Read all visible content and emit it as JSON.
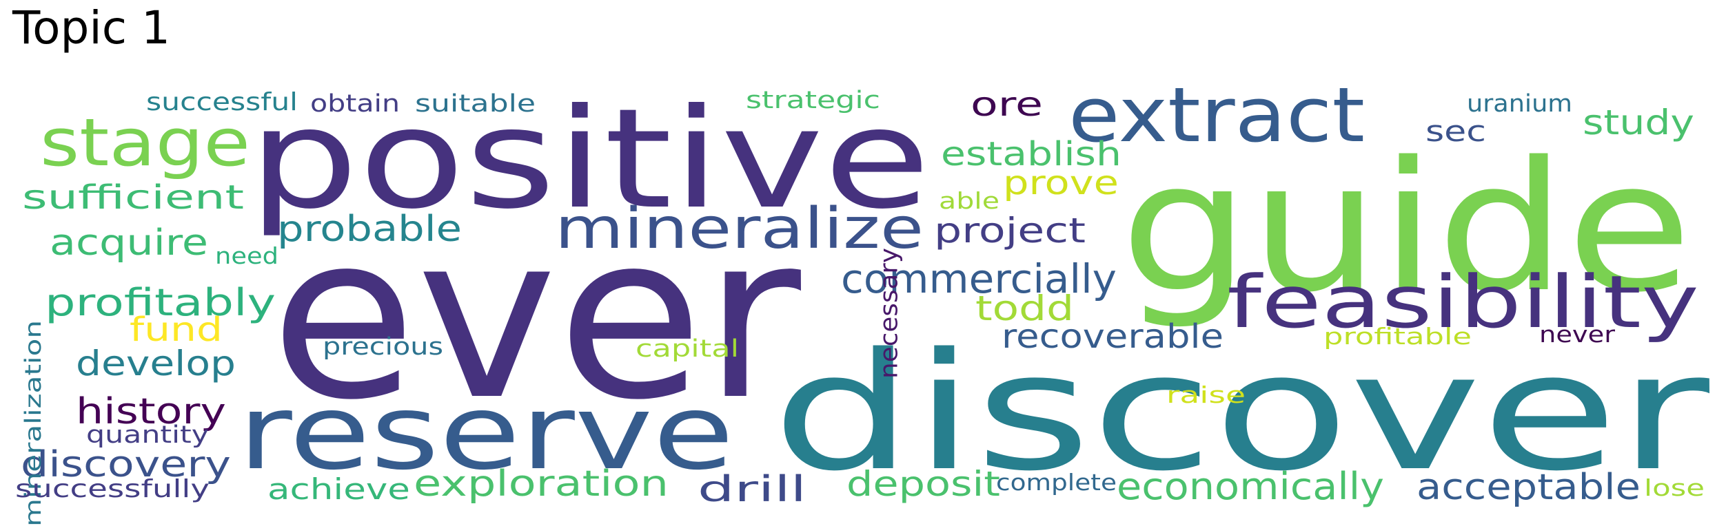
{
  "title": "Topic 1",
  "words": [
    {
      "text": "ever",
      "color": "#46327e"
    },
    {
      "text": "discover",
      "color": "#277f8e"
    },
    {
      "text": "guide",
      "color": "#7ad151"
    },
    {
      "text": "positive",
      "color": "#46327e"
    },
    {
      "text": "reserve",
      "color": "#365c8d"
    },
    {
      "text": "extract",
      "color": "#365c8d"
    },
    {
      "text": "feasibility",
      "color": "#46327e"
    },
    {
      "text": "mineralize",
      "color": "#3b528b"
    },
    {
      "text": "stage",
      "color": "#7ad151"
    },
    {
      "text": "commercially",
      "color": "#365c8d"
    },
    {
      "text": "economically",
      "color": "#4ac16d"
    },
    {
      "text": "acceptable",
      "color": "#365c8d"
    },
    {
      "text": "exploration",
      "color": "#4ac16d"
    },
    {
      "text": "deposit",
      "color": "#4ac16d"
    },
    {
      "text": "profitably",
      "color": "#2db27d"
    },
    {
      "text": "probable",
      "color": "#25858e"
    },
    {
      "text": "project",
      "color": "#433e85"
    },
    {
      "text": "recoverable",
      "color": "#365c8d"
    },
    {
      "text": "establish",
      "color": "#4ac16d"
    },
    {
      "text": "discovery",
      "color": "#3b528b"
    },
    {
      "text": "history",
      "color": "#440154"
    },
    {
      "text": "drill",
      "color": "#3e4a89"
    },
    {
      "text": "develop",
      "color": "#277f8e"
    },
    {
      "text": "sufficient",
      "color": "#3dbc74"
    },
    {
      "text": "acquire",
      "color": "#3dbc74"
    },
    {
      "text": "study",
      "color": "#4ac16d"
    },
    {
      "text": "todd",
      "color": "#a2da37"
    },
    {
      "text": "prove",
      "color": "#d0e11c"
    },
    {
      "text": "ore",
      "color": "#3e0751"
    },
    {
      "text": "achieve",
      "color": "#35b779"
    },
    {
      "text": "fund",
      "color": "#fde725"
    },
    {
      "text": "sec",
      "color": "#3b528b"
    },
    {
      "text": "necessary",
      "color": "#48186a"
    },
    {
      "text": "mineralization",
      "color": "#2a788e"
    },
    {
      "text": "successfully",
      "color": "#433e85"
    },
    {
      "text": "successful",
      "color": "#26828e"
    },
    {
      "text": "obtain",
      "color": "#433e85"
    },
    {
      "text": "suitable",
      "color": "#2c728e"
    },
    {
      "text": "uranium",
      "color": "#2c728e"
    },
    {
      "text": "strategic",
      "color": "#4ac16d"
    },
    {
      "text": "precious",
      "color": "#2c728e"
    },
    {
      "text": "capital",
      "color": "#a2da37"
    },
    {
      "text": "quantity",
      "color": "#433e85"
    },
    {
      "text": "complete",
      "color": "#31688e"
    },
    {
      "text": "profitable",
      "color": "#bddf26"
    },
    {
      "text": "never",
      "color": "#3e0751"
    },
    {
      "text": "raise",
      "color": "#d0e11c"
    },
    {
      "text": "able",
      "color": "#a0da39"
    },
    {
      "text": "need",
      "color": "#2db27d"
    },
    {
      "text": "lose",
      "color": "#a2da37"
    }
  ]
}
